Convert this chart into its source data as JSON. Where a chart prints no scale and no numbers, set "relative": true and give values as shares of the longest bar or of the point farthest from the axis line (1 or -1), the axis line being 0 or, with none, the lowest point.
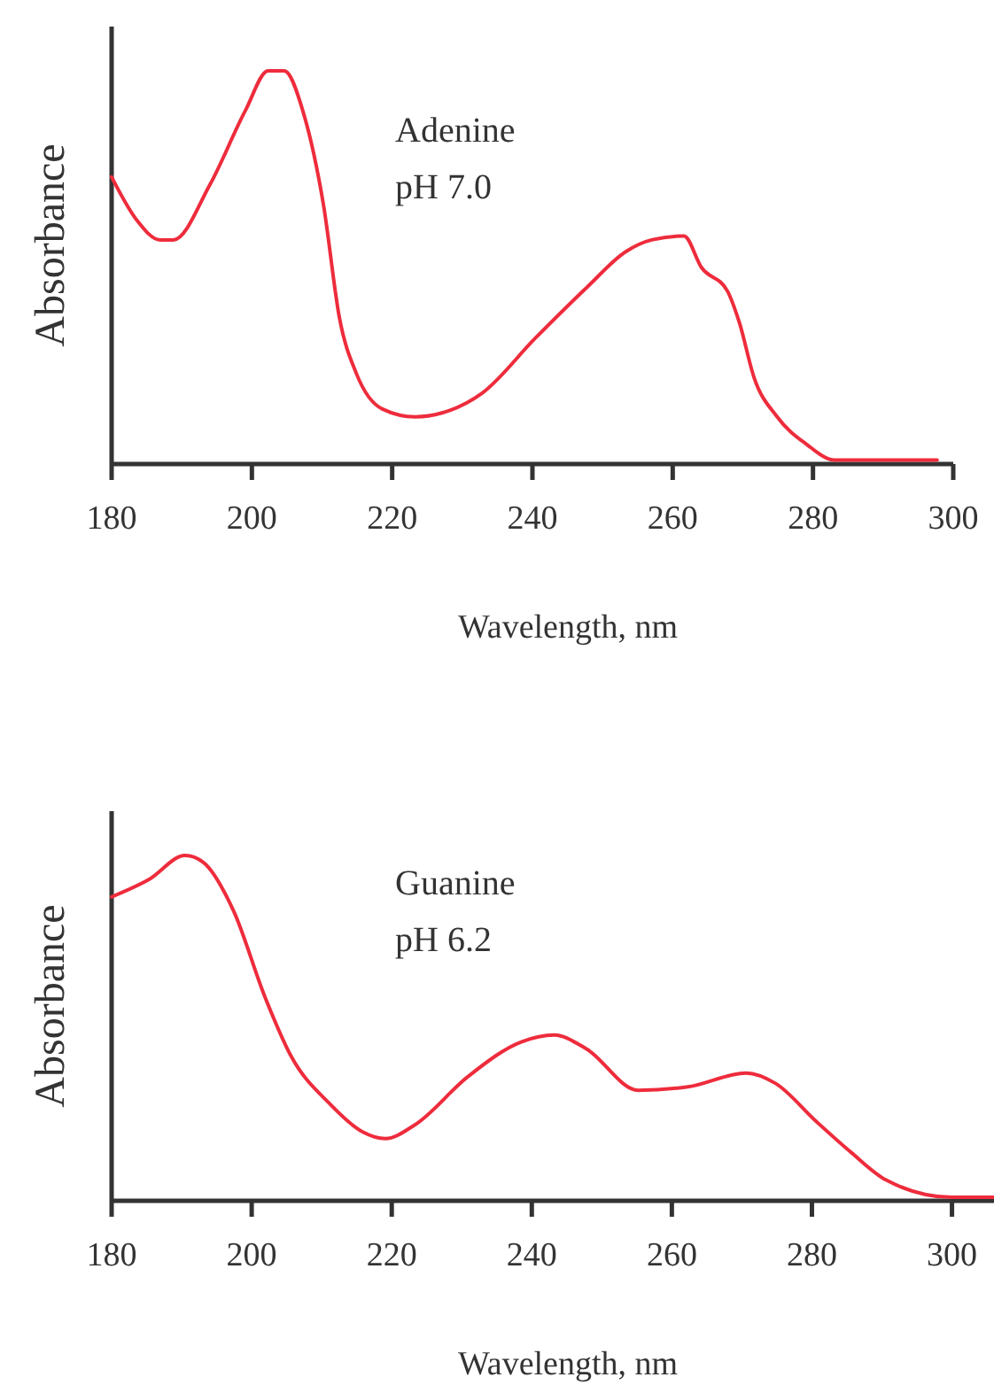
{
  "chart_data": [
    {
      "type": "line",
      "relative": true,
      "xlabel": "Wavelength, nm",
      "ylabel": "Absorbance",
      "annotations": [
        "Adenine",
        "pH 7.0"
      ],
      "xlim": [
        180,
        300
      ],
      "xticks": [
        180,
        200,
        220,
        240,
        260,
        280,
        300
      ],
      "marker": "none",
      "line_style": "solid",
      "grid": false,
      "series": [
        {
          "color": "#ee2c3c",
          "x": [
            180,
            183.6,
            186.9,
            188.8,
            194,
            199.1,
            202.3,
            204.6,
            207.4,
            210.2,
            212.5,
            214.9,
            218.6,
            223.3,
            227.1,
            232.8,
            240.4,
            247.8,
            253.3,
            257,
            261.6,
            264.1,
            267.8,
            269.5,
            271.6,
            274.9,
            279.1,
            283.1,
            297.7
          ],
          "values": [
            0.73,
            0.62,
            0.57,
            0.57,
            0.71,
            0.9,
            1,
            1,
            0.89,
            0.66,
            0.37,
            0.23,
            0.14,
            0.12,
            0.13,
            0.18,
            0.32,
            0.45,
            0.54,
            0.57,
            0.58,
            0.5,
            0.44,
            0.36,
            0.22,
            0.12,
            0.05,
            0.01,
            0.01
          ]
        }
      ]
    },
    {
      "type": "line",
      "relative": true,
      "xlabel": "Wavelength, nm",
      "ylabel": "Absorbance",
      "annotations": [
        "Guanine",
        "pH 6.2"
      ],
      "xlim": [
        180,
        306
      ],
      "xticks": [
        180,
        200,
        220,
        240,
        260,
        280,
        300
      ],
      "marker": "none",
      "line_style": "solid",
      "grid": false,
      "series": [
        {
          "color": "#ee2c3c",
          "x": [
            180,
            185.3,
            190.5,
            193.1,
            197.4,
            201.9,
            205.6,
            211.2,
            215.8,
            219.1,
            223.3,
            230.9,
            238.5,
            243.2,
            247.8,
            255.2,
            262.3,
            270.6,
            274.8,
            280.6,
            285.6,
            290.6,
            300,
            306
          ],
          "values": [
            0.88,
            0.93,
            1,
            0.98,
            0.84,
            0.59,
            0.42,
            0.28,
            0.2,
            0.18,
            0.22,
            0.36,
            0.46,
            0.48,
            0.44,
            0.32,
            0.33,
            0.37,
            0.34,
            0.23,
            0.14,
            0.06,
            0.01,
            0.01
          ]
        }
      ]
    }
  ]
}
